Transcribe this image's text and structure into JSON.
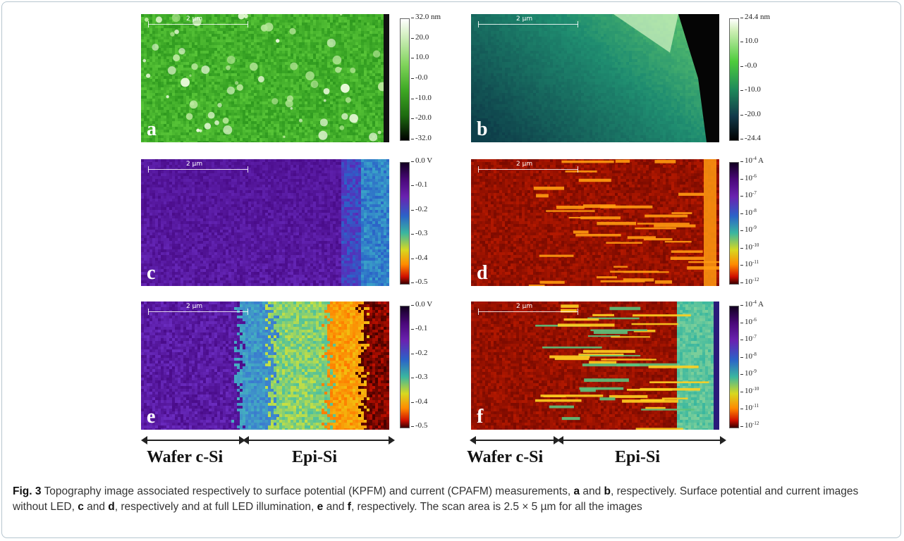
{
  "figure": {
    "scale_bar_label": "2 µm",
    "panels": [
      {
        "letter": "a",
        "colormap": "green"
      },
      {
        "letter": "b",
        "colormap": "topo"
      },
      {
        "letter": "c",
        "colormap": "potential_dark"
      },
      {
        "letter": "d",
        "colormap": "current_dark"
      },
      {
        "letter": "e",
        "colormap": "potential_lit"
      },
      {
        "letter": "f",
        "colormap": "current_lit"
      }
    ],
    "colorbars": {
      "a": [
        "32.0 nm",
        "20.0",
        "10.0",
        "-0.0",
        "-10.0",
        "-20.0",
        "-32.0"
      ],
      "b": [
        "24.4 nm",
        "10.0",
        "-0.0",
        "-10.0",
        "-20.0",
        "-24.4"
      ],
      "c": [
        "0.0 V",
        "-0.1",
        "-0.2",
        "-0.3",
        "-0.4",
        "-0.5"
      ],
      "d": [
        "10-4 A",
        "10-6",
        "10-7",
        "10-8",
        "10-9",
        "10-10",
        "10-11",
        "10-12"
      ],
      "e": [
        "0.0 V",
        "-0.1",
        "-0.2",
        "-0.3",
        "-0.4",
        "-0.5"
      ],
      "f": [
        "10-4 A",
        "10-6",
        "10-7",
        "10-8",
        "10-9",
        "10-10",
        "10-11",
        "10-12"
      ]
    },
    "region_labels": {
      "left_wafer": "Wafer c-Si",
      "left_epi": "Epi-Si",
      "right_wafer": "Wafer c-Si",
      "right_epi": "Epi-Si"
    }
  },
  "caption": {
    "label": "Fig. 3",
    "parts": [
      " Topography image associated respectively to surface potential (KPFM) and current (CPAFM) measurements, ",
      "a",
      " and ",
      "b",
      ", respectively. Surface potential and current images without LED, ",
      "c",
      " and ",
      "d",
      ", respectively and at full LED illumination, ",
      "e",
      " and ",
      "f",
      ", respectively. The scan area is 2.5 × 5 µm for all the images"
    ]
  }
}
